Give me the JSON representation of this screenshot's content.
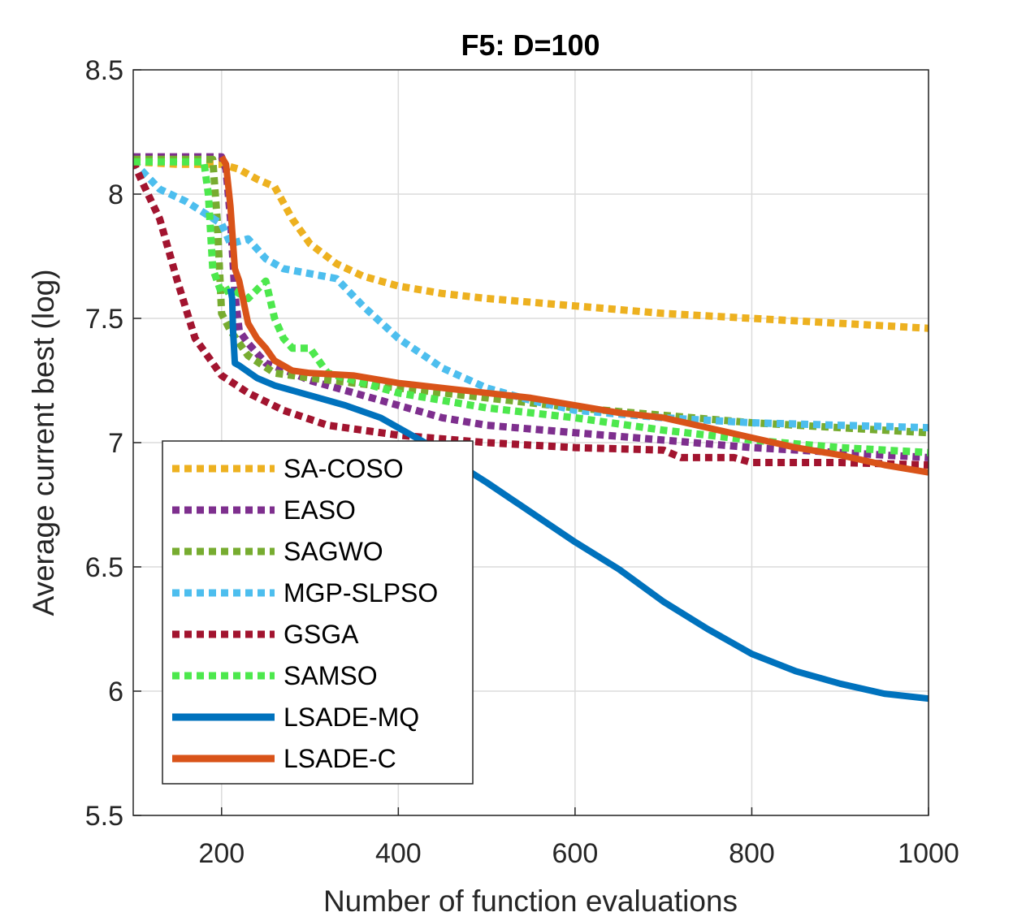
{
  "chart_data": {
    "type": "line",
    "title": "F5: D=100",
    "xlabel": "Number of function evaluations",
    "ylabel": "Average current best (log)",
    "xlim": [
      100,
      1000
    ],
    "ylim": [
      5.5,
      8.5
    ],
    "xticks": [
      200,
      400,
      600,
      800,
      1000
    ],
    "yticks": [
      5.5,
      6,
      6.5,
      7,
      7.5,
      8,
      8.5
    ],
    "xtick_labels": [
      "200",
      "400",
      "600",
      "800",
      "1000"
    ],
    "ytick_labels": [
      "5.5",
      "6",
      "6.5",
      "7",
      "7.5",
      "8",
      "8.5"
    ],
    "grid": true,
    "legend_position": "bottom-left",
    "series": [
      {
        "name": "SA-COSO",
        "color": "#EDB120",
        "style": "dotted",
        "x": [
          100,
          150,
          200,
          220,
          240,
          260,
          280,
          300,
          330,
          360,
          400,
          450,
          500,
          600,
          700,
          800,
          900,
          1000
        ],
        "y": [
          8.13,
          8.12,
          8.12,
          8.1,
          8.06,
          8.03,
          7.9,
          7.8,
          7.72,
          7.67,
          7.63,
          7.6,
          7.58,
          7.55,
          7.52,
          7.5,
          7.48,
          7.46
        ]
      },
      {
        "name": "EASO",
        "color": "#7E2F8E",
        "style": "dotted",
        "x": [
          100,
          200,
          205,
          210,
          215,
          220,
          230,
          250,
          280,
          300,
          350,
          400,
          450,
          500,
          600,
          700,
          800,
          900,
          1000
        ],
        "y": [
          8.15,
          8.15,
          8.1,
          7.9,
          7.6,
          7.45,
          7.4,
          7.32,
          7.28,
          7.25,
          7.2,
          7.15,
          7.1,
          7.07,
          7.04,
          7.01,
          6.98,
          6.96,
          6.94
        ]
      },
      {
        "name": "SAGWO",
        "color": "#77AC30",
        "style": "dotted",
        "x": [
          100,
          190,
          195,
          200,
          210,
          230,
          260,
          300,
          350,
          400,
          450,
          500,
          600,
          700,
          800,
          900,
          1000
        ],
        "y": [
          8.14,
          8.14,
          7.9,
          7.52,
          7.45,
          7.35,
          7.28,
          7.26,
          7.24,
          7.22,
          7.2,
          7.18,
          7.14,
          7.11,
          7.08,
          7.06,
          7.04
        ]
      },
      {
        "name": "MGP-SLPSO",
        "color": "#4DBEEE",
        "style": "dotted",
        "x": [
          100,
          130,
          160,
          200,
          210,
          230,
          250,
          270,
          300,
          330,
          360,
          400,
          450,
          500,
          550,
          600,
          700,
          800,
          900,
          1000
        ],
        "y": [
          8.13,
          8.02,
          7.97,
          7.88,
          7.8,
          7.82,
          7.74,
          7.7,
          7.68,
          7.66,
          7.55,
          7.42,
          7.3,
          7.22,
          7.17,
          7.13,
          7.1,
          7.08,
          7.07,
          7.06
        ]
      },
      {
        "name": "GSGA",
        "color": "#A2142F",
        "style": "dotted",
        "x": [
          100,
          110,
          130,
          150,
          170,
          200,
          230,
          270,
          320,
          400,
          500,
          600,
          700,
          720,
          780,
          800,
          900,
          1000
        ],
        "y": [
          8.13,
          8.05,
          7.9,
          7.65,
          7.42,
          7.27,
          7.2,
          7.13,
          7.07,
          7.03,
          7.0,
          6.98,
          6.97,
          6.94,
          6.94,
          6.92,
          6.92,
          6.91
        ]
      },
      {
        "name": "SAMSO",
        "color": "#4DE84D",
        "style": "dotted",
        "x": [
          100,
          180,
          185,
          190,
          200,
          210,
          220,
          230,
          250,
          260,
          270,
          280,
          300,
          310,
          320,
          350,
          400,
          500,
          600,
          700,
          800,
          900,
          1000
        ],
        "y": [
          8.13,
          8.13,
          8.0,
          7.7,
          7.6,
          7.62,
          7.6,
          7.58,
          7.65,
          7.5,
          7.42,
          7.38,
          7.38,
          7.33,
          7.28,
          7.25,
          7.2,
          7.14,
          7.1,
          7.05,
          7.01,
          6.98,
          6.96
        ]
      },
      {
        "name": "LSADE-MQ",
        "color": "#0072BD",
        "style": "solid",
        "x": [
          210,
          212,
          213,
          215,
          220,
          240,
          260,
          300,
          340,
          380,
          400,
          430,
          460,
          500,
          550,
          600,
          650,
          700,
          750,
          800,
          850,
          900,
          950,
          1000
        ],
        "y": [
          7.62,
          7.58,
          7.45,
          7.32,
          7.31,
          7.26,
          7.23,
          7.19,
          7.15,
          7.1,
          7.06,
          7.0,
          6.93,
          6.84,
          6.72,
          6.6,
          6.49,
          6.36,
          6.25,
          6.15,
          6.08,
          6.03,
          5.99,
          5.97
        ]
      },
      {
        "name": "LSADE-C",
        "color": "#D95319",
        "style": "solid",
        "x": [
          200,
          205,
          210,
          215,
          220,
          230,
          240,
          250,
          260,
          270,
          280,
          300,
          350,
          400,
          450,
          500,
          550,
          600,
          650,
          700,
          750,
          800,
          850,
          900,
          950,
          1000
        ],
        "y": [
          8.15,
          8.12,
          7.95,
          7.7,
          7.65,
          7.48,
          7.42,
          7.38,
          7.33,
          7.31,
          7.29,
          7.28,
          7.27,
          7.24,
          7.22,
          7.2,
          7.18,
          7.15,
          7.12,
          7.1,
          7.06,
          7.02,
          6.98,
          6.95,
          6.91,
          6.88
        ]
      }
    ]
  }
}
